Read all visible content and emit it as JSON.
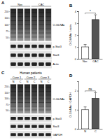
{
  "figure": {
    "panels": [
      {
        "label": "A",
        "groups": [
          "Nor.",
          "CAC"
        ],
        "lanes_per_group": 3,
        "markers": [
          250,
          150,
          100,
          75,
          50
        ],
        "bands": [
          "O-GlcNAc",
          "p-Stat3",
          "Stat3",
          "Actin"
        ]
      },
      {
        "label": "C",
        "title": "Human patients",
        "groups": [
          "Case 1",
          "Case 2",
          "Case 3"
        ],
        "lanes": [
          "N",
          "C",
          "N",
          "C",
          "N",
          "C"
        ],
        "markers": [
          250,
          150,
          100,
          75,
          50
        ],
        "bands": [
          "O-GlcNAc",
          "p-Stat3",
          "Stat3",
          "GAPDH"
        ]
      }
    ]
  },
  "chart_data": [
    {
      "type": "bar",
      "panel_label": "B",
      "y_label": "O-GlcNAc / actin",
      "categories": [
        "Nor.",
        "CAC"
      ],
      "values": [
        1,
        3.3
      ],
      "errors": [
        0.2,
        0.4
      ],
      "colors": [
        "#ffffff",
        "#555555"
      ],
      "ylim": [
        0,
        4
      ],
      "yticks": [
        0,
        1,
        2,
        3,
        4
      ],
      "annotation": "*"
    },
    {
      "type": "bar",
      "panel_label": "D",
      "y_label": "O-GlcNAc / GAPDH",
      "categories": [
        "N",
        "C"
      ],
      "values": [
        1,
        1.6
      ],
      "errors": [
        0.15,
        0.3
      ],
      "colors": [
        "#ffffff",
        "#555555"
      ],
      "ylim": [
        0,
        2.5
      ],
      "yticks": [
        0,
        1,
        2
      ],
      "annotation": "ns"
    }
  ]
}
